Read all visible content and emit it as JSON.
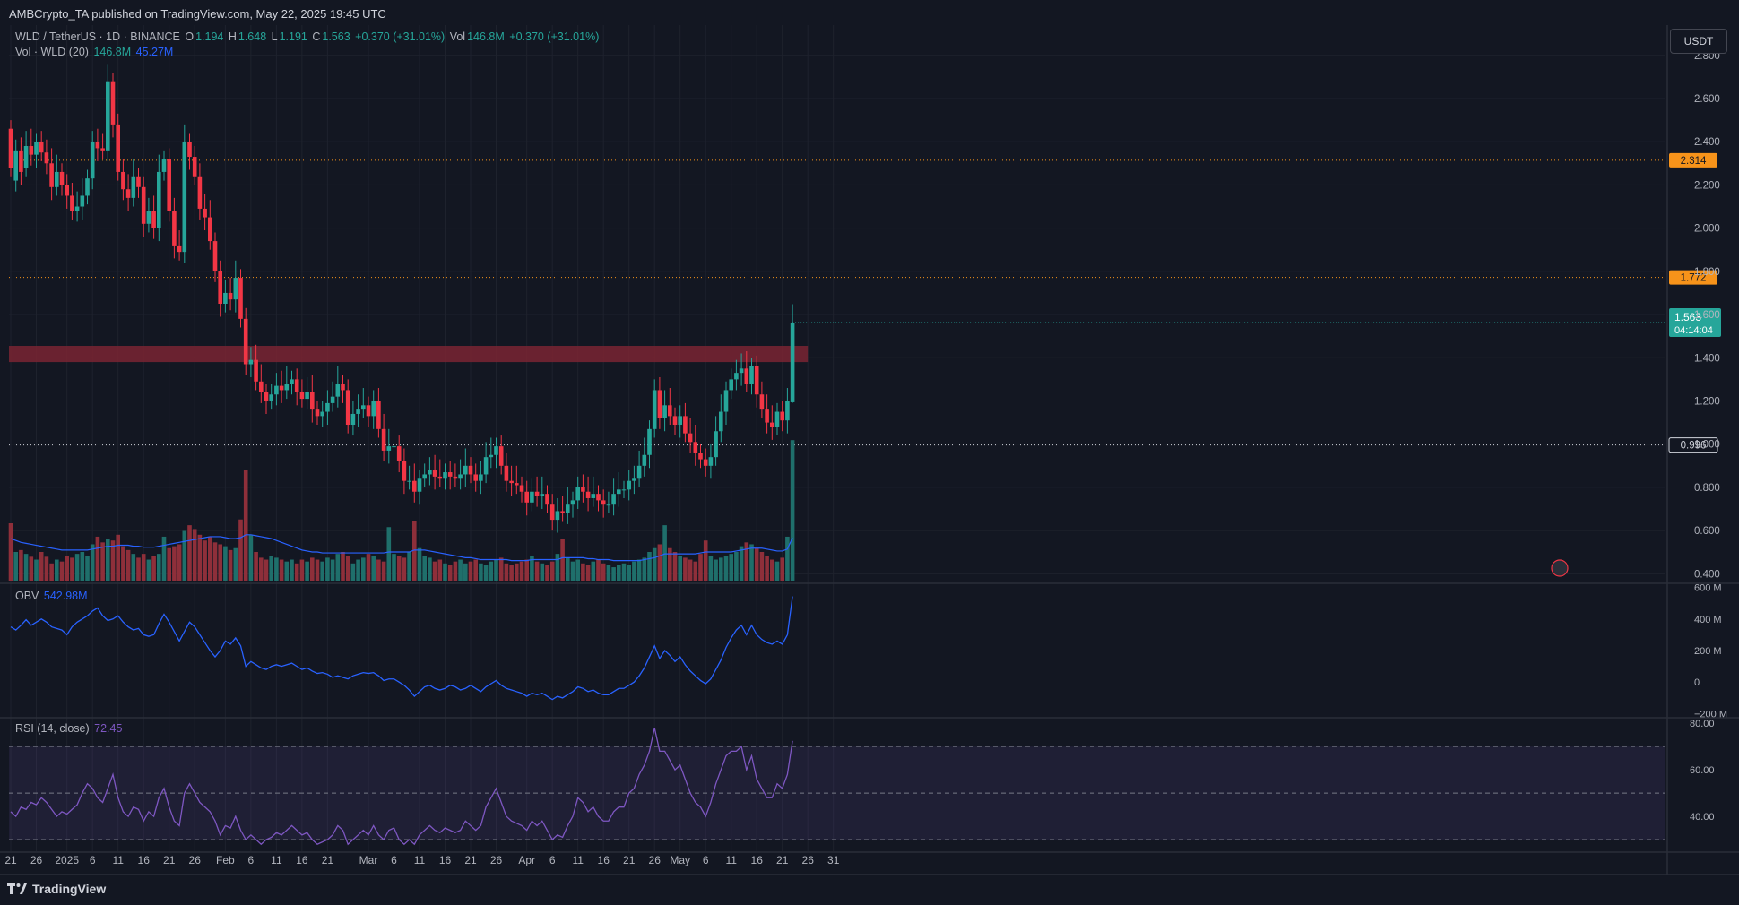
{
  "header": {
    "published_line": "AMBCrypto_TA published on TradingView.com, May 22, 2025 19:45 UTC"
  },
  "legend_main": {
    "symbol": "WLD / TetherUS · 1D · BINANCE",
    "o_label": "O",
    "o_value": "1.194",
    "h_label": "H",
    "h_value": "1.648",
    "l_label": "L",
    "l_value": "1.191",
    "c_label": "C",
    "c_value": "1.563",
    "change": "+0.370 (+31.01%)",
    "vol_label": "Vol",
    "vol_value": "146.8M",
    "vol_change": "+0.370 (+31.01%)"
  },
  "legend_vol": {
    "label": "Vol · WLD (20)",
    "value1": "146.8M",
    "value2": "45.27M"
  },
  "legend_obv": {
    "label": "OBV",
    "value": "542.98M"
  },
  "legend_rsi": {
    "label": "RSI (14, close)",
    "value": "72.45"
  },
  "currency_button": "USDT",
  "footer": {
    "brand": "TradingView"
  },
  "colors": {
    "background": "#131722",
    "up": "#26a69a",
    "down": "#f23645",
    "volume_up": "#1f6f6b",
    "volume_down": "#8e2f3a",
    "ma_line": "#2962ff",
    "obv_line": "#2962ff",
    "rsi_line": "#7e57c2",
    "resistance_zone": "#7a2433",
    "level_orange": "#f7931a",
    "grid": "#1e222d"
  },
  "chart_data": [
    {
      "type": "candlestick",
      "title": "WLD / TetherUS · 1D · BINANCE",
      "ylim": [
        0.36,
        2.94
      ],
      "yticks": [
        "2.800",
        "2.600",
        "2.400",
        "2.200",
        "2.000",
        "1.800",
        "1.600",
        "1.400",
        "1.200",
        "1.000",
        "0.800",
        "0.600",
        "0.400"
      ],
      "xticks": [
        {
          "label": "21",
          "index": 0
        },
        {
          "label": "26",
          "index": 5
        },
        {
          "label": "2025",
          "index": 11
        },
        {
          "label": "6",
          "index": 16
        },
        {
          "label": "11",
          "index": 21
        },
        {
          "label": "16",
          "index": 26
        },
        {
          "label": "21",
          "index": 31
        },
        {
          "label": "26",
          "index": 36
        },
        {
          "label": "Feb",
          "index": 42
        },
        {
          "label": "6",
          "index": 47
        },
        {
          "label": "11",
          "index": 52
        },
        {
          "label": "16",
          "index": 57
        },
        {
          "label": "21",
          "index": 62
        },
        {
          "label": "Mar",
          "index": 70
        },
        {
          "label": "6",
          "index": 75
        },
        {
          "label": "11",
          "index": 80
        },
        {
          "label": "16",
          "index": 85
        },
        {
          "label": "21",
          "index": 90
        },
        {
          "label": "26",
          "index": 95
        },
        {
          "label": "Apr",
          "index": 101
        },
        {
          "label": "6",
          "index": 106
        },
        {
          "label": "11",
          "index": 111
        },
        {
          "label": "16",
          "index": 116
        },
        {
          "label": "21",
          "index": 121
        },
        {
          "label": "26",
          "index": 126
        },
        {
          "label": "May",
          "index": 131
        },
        {
          "label": "6",
          "index": 136
        },
        {
          "label": "11",
          "index": 141
        },
        {
          "label": "16",
          "index": 146
        },
        {
          "label": "21",
          "index": 151
        },
        {
          "label": "26",
          "index": 156
        },
        {
          "label": "31",
          "index": 161
        }
      ],
      "levels": [
        {
          "value": 2.314,
          "label": "2.314",
          "style": "orange"
        },
        {
          "value": 1.772,
          "label": "1.772",
          "style": "orange"
        },
        {
          "value": 0.996,
          "label": "0.996",
          "style": "white"
        }
      ],
      "last_price": {
        "value": 1.563,
        "label": "1.563",
        "countdown": "04:14:04"
      },
      "zone": {
        "low": 1.38,
        "high": 1.455
      },
      "series_close": [
        2.28,
        2.36,
        2.26,
        2.38,
        2.34,
        2.4,
        2.35,
        2.3,
        2.19,
        2.26,
        2.2,
        2.15,
        2.08,
        2.1,
        2.15,
        2.23,
        2.4,
        2.37,
        2.36,
        2.68,
        2.48,
        2.26,
        2.18,
        2.14,
        2.24,
        2.19,
        2.02,
        2.08,
        2.0,
        2.26,
        2.32,
        2.08,
        1.92,
        1.89,
        2.4,
        2.33,
        2.24,
        2.09,
        2.05,
        1.94,
        1.8,
        1.65,
        1.7,
        1.67,
        1.77,
        1.58,
        1.37,
        1.39,
        1.29,
        1.24,
        1.2,
        1.23,
        1.27,
        1.25,
        1.28,
        1.3,
        1.24,
        1.21,
        1.24,
        1.16,
        1.13,
        1.15,
        1.19,
        1.22,
        1.28,
        1.25,
        1.09,
        1.14,
        1.16,
        1.18,
        1.13,
        1.2,
        1.07,
        0.97,
        0.99,
        0.99,
        0.92,
        0.83,
        0.83,
        0.78,
        0.84,
        0.86,
        0.88,
        0.85,
        0.84,
        0.87,
        0.85,
        0.84,
        0.86,
        0.9,
        0.86,
        0.83,
        0.86,
        0.94,
        0.95,
        0.99,
        0.9,
        0.83,
        0.82,
        0.81,
        0.78,
        0.73,
        0.78,
        0.76,
        0.77,
        0.72,
        0.65,
        0.69,
        0.68,
        0.72,
        0.74,
        0.8,
        0.78,
        0.75,
        0.77,
        0.74,
        0.72,
        0.72,
        0.77,
        0.79,
        0.79,
        0.83,
        0.84,
        0.9,
        0.95,
        1.07,
        1.25,
        1.12,
        1.18,
        1.13,
        1.09,
        1.13,
        1.05,
        1.01,
        0.96,
        0.93,
        0.9,
        0.94,
        1.06,
        1.15,
        1.25,
        1.3,
        1.33,
        1.35,
        1.28,
        1.36,
        1.23,
        1.16,
        1.1,
        1.08,
        1.15,
        1.11,
        1.2,
        1.563
      ],
      "series_open": [
        2.46,
        2.22,
        2.36,
        2.28,
        2.38,
        2.34,
        2.4,
        2.35,
        2.3,
        2.19,
        2.26,
        2.2,
        2.15,
        2.08,
        2.1,
        2.15,
        2.23,
        2.4,
        2.37,
        2.36,
        2.68,
        2.48,
        2.26,
        2.18,
        2.14,
        2.24,
        2.19,
        2.02,
        2.08,
        2.0,
        2.26,
        2.32,
        2.08,
        1.92,
        1.89,
        2.4,
        2.33,
        2.24,
        2.09,
        2.05,
        1.94,
        1.8,
        1.65,
        1.7,
        1.67,
        1.77,
        1.58,
        1.37,
        1.39,
        1.29,
        1.24,
        1.2,
        1.23,
        1.27,
        1.25,
        1.28,
        1.3,
        1.24,
        1.21,
        1.24,
        1.16,
        1.13,
        1.15,
        1.19,
        1.22,
        1.28,
        1.25,
        1.09,
        1.14,
        1.16,
        1.18,
        1.13,
        1.2,
        1.07,
        0.97,
        0.99,
        0.99,
        0.92,
        0.83,
        0.83,
        0.78,
        0.84,
        0.86,
        0.88,
        0.85,
        0.84,
        0.87,
        0.85,
        0.84,
        0.86,
        0.9,
        0.86,
        0.83,
        0.86,
        0.94,
        0.95,
        0.99,
        0.9,
        0.83,
        0.82,
        0.81,
        0.78,
        0.73,
        0.78,
        0.76,
        0.77,
        0.72,
        0.65,
        0.69,
        0.68,
        0.72,
        0.74,
        0.8,
        0.78,
        0.75,
        0.77,
        0.74,
        0.72,
        0.72,
        0.77,
        0.79,
        0.79,
        0.83,
        0.84,
        0.9,
        0.95,
        1.07,
        1.25,
        1.12,
        1.18,
        1.13,
        1.09,
        1.13,
        1.05,
        1.01,
        0.96,
        0.93,
        0.9,
        0.94,
        1.06,
        1.15,
        1.25,
        1.3,
        1.33,
        1.35,
        1.28,
        1.36,
        1.23,
        1.16,
        1.1,
        1.08,
        1.15,
        1.11,
        1.194
      ],
      "volume_m": [
        60,
        30,
        32,
        28,
        25,
        22,
        30,
        25,
        18,
        22,
        20,
        26,
        24,
        28,
        30,
        26,
        38,
        46,
        40,
        44,
        42,
        48,
        36,
        32,
        28,
        24,
        28,
        22,
        26,
        28,
        46,
        34,
        36,
        38,
        52,
        58,
        54,
        48,
        42,
        46,
        40,
        38,
        36,
        32,
        34,
        64,
        116,
        48,
        30,
        24,
        22,
        26,
        24,
        22,
        20,
        22,
        18,
        22,
        20,
        24,
        22,
        20,
        24,
        22,
        28,
        30,
        26,
        18,
        22,
        24,
        28,
        26,
        22,
        20,
        56,
        28,
        26,
        24,
        30,
        62,
        34,
        26,
        24,
        20,
        22,
        18,
        16,
        20,
        22,
        18,
        20,
        22,
        18,
        16,
        20,
        22,
        24,
        18,
        16,
        18,
        20,
        22,
        26,
        20,
        18,
        16,
        20,
        28,
        44,
        24,
        20,
        22,
        18,
        16,
        20,
        22,
        18,
        16,
        14,
        16,
        18,
        16,
        20,
        22,
        24,
        30,
        34,
        38,
        58,
        34,
        30,
        26,
        24,
        22,
        20,
        28,
        42,
        26,
        22,
        24,
        26,
        28,
        30,
        36,
        40,
        38,
        34,
        30,
        26,
        22,
        20,
        24,
        46,
        147
      ],
      "vol_ma_m": [
        44,
        42,
        40,
        39,
        38,
        37,
        36,
        35,
        34,
        33,
        32,
        32,
        32,
        32,
        32,
        32,
        33,
        34,
        35,
        36,
        36,
        37,
        37,
        37,
        36,
        36,
        35,
        35,
        35,
        36,
        37,
        38,
        39,
        40,
        41,
        42,
        43,
        44,
        45,
        46,
        46,
        46,
        45,
        44,
        44,
        45,
        48,
        48,
        47,
        46,
        45,
        44,
        42,
        40,
        38,
        36,
        34,
        32,
        31,
        30,
        30,
        29,
        29,
        29,
        29,
        29,
        29,
        29,
        29,
        29,
        29,
        29,
        29,
        29,
        30,
        30,
        30,
        30,
        30,
        32,
        32,
        32,
        31,
        30,
        29,
        28,
        27,
        26,
        25,
        24,
        24,
        23,
        22,
        22,
        22,
        22,
        22,
        22,
        21,
        21,
        21,
        21,
        22,
        22,
        22,
        22,
        22,
        22,
        24,
        24,
        24,
        24,
        24,
        23,
        23,
        22,
        22,
        22,
        21,
        21,
        21,
        21,
        21,
        21,
        22,
        23,
        24,
        26,
        28,
        28,
        28,
        28,
        28,
        28,
        28,
        29,
        30,
        30,
        30,
        30,
        30,
        30,
        31,
        32,
        33,
        34,
        34,
        34,
        33,
        32,
        31,
        31,
        33,
        45
      ]
    },
    {
      "type": "line",
      "title": "OBV",
      "ylim": [
        -220,
        620
      ],
      "yticks": [
        "600 M",
        "400 M",
        "200 M",
        "0",
        "−200 M"
      ],
      "values_m": [
        350,
        330,
        360,
        395,
        360,
        380,
        400,
        380,
        350,
        340,
        330,
        300,
        350,
        380,
        400,
        420,
        450,
        470,
        420,
        390,
        400,
        420,
        380,
        350,
        330,
        340,
        300,
        290,
        300,
        370,
        430,
        380,
        320,
        260,
        320,
        380,
        350,
        300,
        250,
        200,
        160,
        200,
        260,
        240,
        280,
        230,
        100,
        130,
        110,
        90,
        80,
        100,
        110,
        100,
        110,
        120,
        100,
        80,
        90,
        70,
        55,
        60,
        50,
        30,
        40,
        30,
        20,
        40,
        50,
        60,
        55,
        60,
        40,
        10,
        20,
        20,
        0,
        -20,
        -50,
        -90,
        -60,
        -30,
        -20,
        -40,
        -50,
        -40,
        -20,
        -30,
        -50,
        -40,
        -20,
        -40,
        -60,
        -30,
        -10,
        10,
        -20,
        -40,
        -50,
        -60,
        -70,
        -90,
        -70,
        -80,
        -70,
        -90,
        -110,
        -90,
        -100,
        -80,
        -60,
        -30,
        -40,
        -60,
        -50,
        -70,
        -80,
        -80,
        -60,
        -40,
        -40,
        -20,
        0,
        40,
        90,
        160,
        230,
        150,
        200,
        170,
        130,
        160,
        110,
        70,
        40,
        10,
        -10,
        20,
        80,
        140,
        220,
        280,
        330,
        360,
        300,
        360,
        300,
        270,
        250,
        240,
        260,
        240,
        300,
        542.98
      ]
    },
    {
      "type": "line",
      "title": "RSI (14, close)",
      "ylim": [
        25,
        82
      ],
      "yticks": [
        "80.00",
        "60.00",
        "40.00"
      ],
      "bands": {
        "upper": 70,
        "middle": 50,
        "lower": 30
      },
      "values": [
        42,
        40,
        44,
        43,
        46,
        45,
        48,
        46,
        43,
        40,
        42,
        41,
        43,
        45,
        50,
        54,
        52,
        48,
        46,
        52,
        58,
        48,
        42,
        40,
        44,
        43,
        38,
        42,
        40,
        48,
        52,
        44,
        38,
        36,
        50,
        54,
        50,
        46,
        44,
        42,
        38,
        32,
        36,
        35,
        40,
        34,
        30,
        32,
        30,
        28,
        30,
        31,
        33,
        32,
        34,
        36,
        34,
        32,
        33,
        30,
        28,
        29,
        30,
        32,
        36,
        34,
        28,
        30,
        32,
        34,
        32,
        36,
        32,
        30,
        34,
        35,
        30,
        28,
        30,
        28,
        32,
        34,
        36,
        34,
        33,
        35,
        34,
        33,
        34,
        38,
        36,
        34,
        36,
        44,
        48,
        52,
        46,
        40,
        38,
        37,
        36,
        34,
        38,
        36,
        38,
        34,
        30,
        32,
        31,
        36,
        40,
        48,
        46,
        42,
        44,
        40,
        38,
        38,
        42,
        44,
        44,
        50,
        52,
        58,
        62,
        68,
        78,
        68,
        68,
        64,
        60,
        62,
        56,
        50,
        46,
        44,
        40,
        46,
        54,
        60,
        66,
        68,
        68,
        70,
        60,
        66,
        56,
        52,
        48,
        48,
        54,
        52,
        58,
        72.45
      ]
    }
  ]
}
